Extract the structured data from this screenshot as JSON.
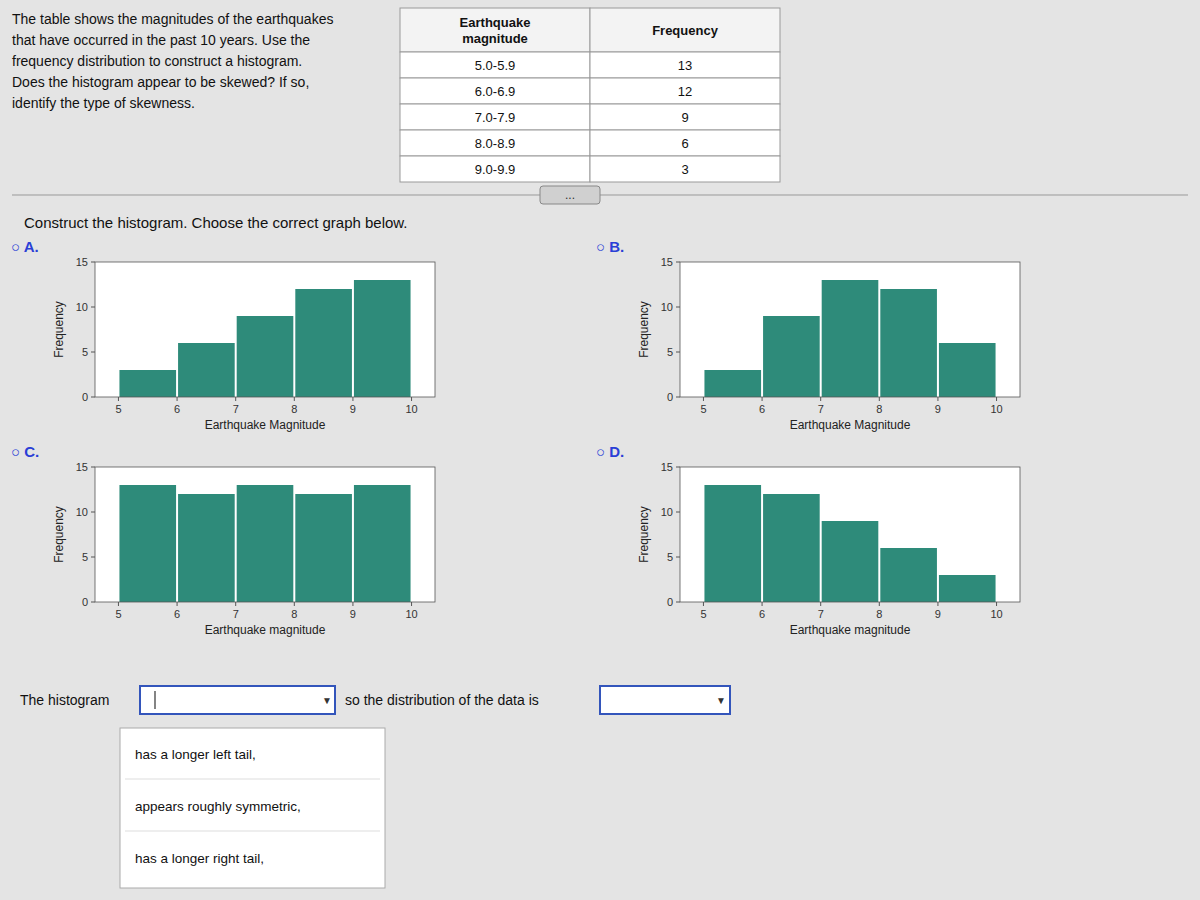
{
  "question": "The table shows the magnitudes of the earthquakes\nthat have occurred in the past 10 years. Use the\nfrequency distribution to construct a histogram.\nDoes the histogram appear to be skewed? If so,\nidentify the type of skewness.",
  "table": {
    "headers": [
      "Earthquake\nmagnitude",
      "Frequency"
    ],
    "rows": [
      [
        "5.0-5.9",
        13
      ],
      [
        "6.0-6.9",
        12
      ],
      [
        "7.0-7.9",
        9
      ],
      [
        "8.0-8.9",
        6
      ],
      [
        "9.0-9.9",
        3
      ]
    ]
  },
  "more_button": "...",
  "instruction": "Construct the histogram. Choose the correct graph below.",
  "sentence": [
    "The histogram",
    "so the distribution of the data is"
  ],
  "dropdown_arrow": "▼",
  "dropdown_options": [
    "has a longer left tail,",
    "appears roughly symmetric,",
    "has a longer right tail,"
  ],
  "chart_data": [
    {
      "type": "histogram",
      "title": "○ A.",
      "bins": [
        5,
        6,
        7,
        8,
        9,
        10
      ],
      "values": [
        3,
        6,
        9,
        12,
        13
      ],
      "color": "#2E8B7A",
      "x_label": "Earthquake Magnitude",
      "y_label": "Frequency",
      "xlim": [
        4.6,
        10.4
      ],
      "xticks": [
        5,
        6,
        7,
        8,
        9,
        10
      ],
      "ylim": [
        0,
        15
      ],
      "yticks": [
        0,
        5,
        10,
        15
      ],
      "grid": false
    },
    {
      "type": "histogram",
      "title": "○ B.",
      "bins": [
        5,
        6,
        7,
        8,
        9,
        10
      ],
      "values": [
        3,
        9,
        13,
        12,
        6
      ],
      "color": "#2E8B7A",
      "x_label": "Earthquake Magnitude",
      "y_label": "Frequency",
      "xlim": [
        4.6,
        10.4
      ],
      "xticks": [
        5,
        6,
        7,
        8,
        9,
        10
      ],
      "ylim": [
        0,
        15
      ],
      "yticks": [
        0,
        5,
        10,
        15
      ],
      "grid": false
    },
    {
      "type": "histogram",
      "title": "○ C.",
      "bins": [
        5,
        6,
        7,
        8,
        9,
        10
      ],
      "values": [
        13,
        12,
        13,
        12,
        13
      ],
      "color": "#2E8B7A",
      "x_label": "Earthquake magnitude",
      "y_label": "Frequency",
      "xlim": [
        4.6,
        10.4
      ],
      "xticks": [
        5,
        6,
        7,
        8,
        9,
        10
      ],
      "ylim": [
        0,
        15
      ],
      "yticks": [
        0,
        5,
        10,
        15
      ],
      "grid": false
    },
    {
      "type": "histogram",
      "title": "○ D.",
      "bins": [
        5,
        6,
        7,
        8,
        9,
        10
      ],
      "values": [
        13,
        12,
        9,
        6,
        3
      ],
      "color": "#2E8B7A",
      "x_label": "Earthquake magnitude",
      "y_label": "Frequency",
      "xlim": [
        4.6,
        10.4
      ],
      "xticks": [
        5,
        6,
        7,
        8,
        9,
        10
      ],
      "ylim": [
        0,
        15
      ],
      "yticks": [
        0,
        5,
        10,
        15
      ],
      "grid": false
    }
  ]
}
